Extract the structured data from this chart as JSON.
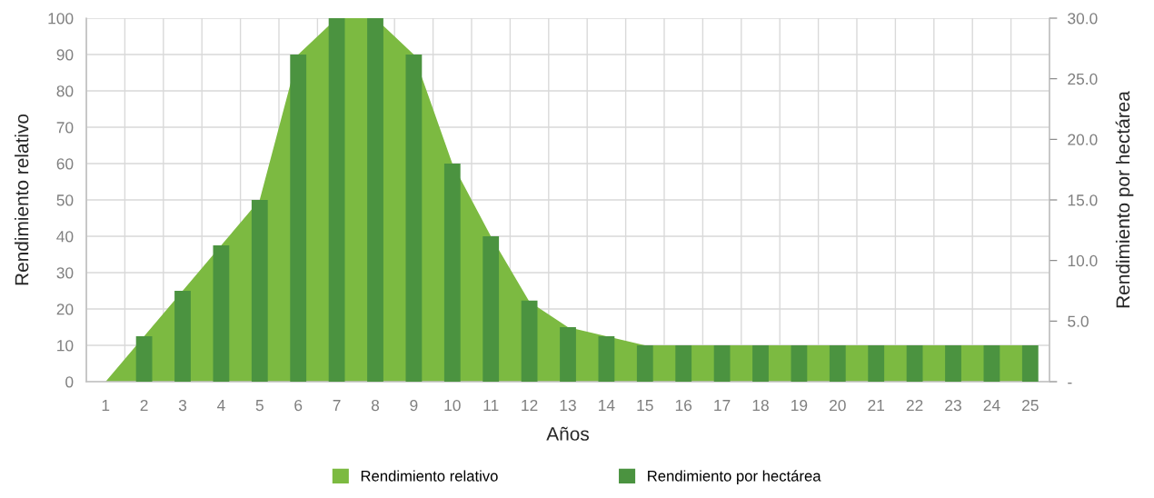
{
  "chart_data": {
    "type": "bar",
    "xlabel": "Años",
    "ylabel": "Rendimiento relativo",
    "y2label": "Rendimiento por hectárea",
    "categories": [
      "1",
      "2",
      "3",
      "4",
      "5",
      "6",
      "7",
      "8",
      "9",
      "10",
      "11",
      "12",
      "13",
      "14",
      "15",
      "16",
      "17",
      "18",
      "19",
      "20",
      "21",
      "22",
      "23",
      "24",
      "25"
    ],
    "series": [
      {
        "name": "Rendimiento relativo",
        "type": "area",
        "color": "#7cba41",
        "values": [
          0,
          12.5,
          25,
          37.5,
          50,
          90,
          100,
          100,
          90,
          60,
          40,
          22,
          15,
          12.5,
          10,
          10,
          10,
          10,
          10,
          10,
          10,
          10,
          10,
          10,
          10
        ]
      },
      {
        "name": "Rendimiento por hectárea",
        "axis": "y2",
        "color": "#4b9340",
        "values": [
          null,
          3.75,
          7.5,
          11.25,
          15,
          27,
          30,
          30,
          27,
          18,
          12,
          6.7,
          4.5,
          3.75,
          3,
          3,
          3,
          3,
          3,
          3,
          3,
          3,
          3,
          3,
          3
        ]
      }
    ],
    "ylim": [
      0,
      100
    ],
    "yticks": [
      0,
      10,
      20,
      30,
      40,
      50,
      60,
      70,
      80,
      90,
      100
    ],
    "y2lim": [
      0,
      30
    ],
    "y2ticks": [
      {
        "value": 0,
        "label": "-"
      },
      {
        "value": 5,
        "label": "5.0"
      },
      {
        "value": 10,
        "label": "10.0"
      },
      {
        "value": 15,
        "label": "15.0"
      },
      {
        "value": 20,
        "label": "20.0"
      },
      {
        "value": 25,
        "label": "25.0"
      },
      {
        "value": 30,
        "label": "30.0"
      }
    ],
    "grid": true,
    "legend": "bottom"
  }
}
